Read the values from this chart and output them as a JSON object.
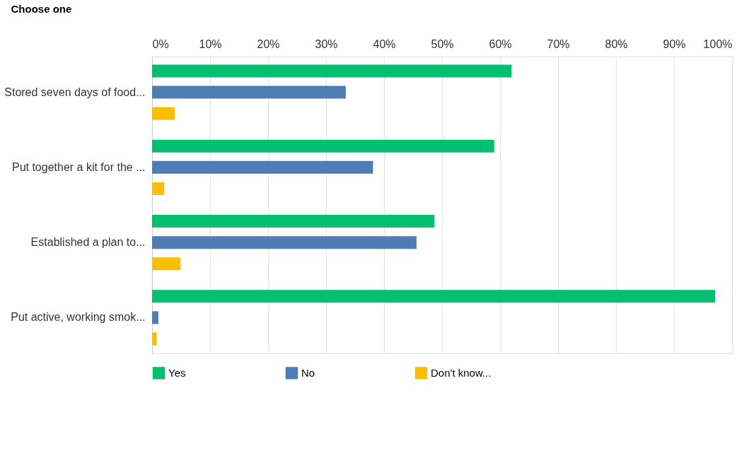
{
  "chart_data": {
    "type": "bar",
    "orientation": "horizontal",
    "ylabel": "Choose one",
    "categories": [
      "Stored seven days of food...",
      "Put together a kit for the ...",
      "Established a plan to...",
      "Put active, working smok..."
    ],
    "series": [
      {
        "name": "Yes",
        "color": "#00bf6f",
        "values": [
          62,
          59,
          48.7,
          97.1
        ]
      },
      {
        "name": "No",
        "color": "#507cb6",
        "values": [
          33.4,
          38.1,
          45.6,
          1.1
        ]
      },
      {
        "name": "Don't know...",
        "color": "#f9be00",
        "values": [
          3.9,
          2.1,
          4.9,
          0.8
        ]
      }
    ],
    "xlim": [
      0,
      100
    ],
    "xticks": [
      {
        "value": 0,
        "label": "0%"
      },
      {
        "value": 10,
        "label": "10%"
      },
      {
        "value": 20,
        "label": "20%"
      },
      {
        "value": 30,
        "label": "30%"
      },
      {
        "value": 40,
        "label": "40%"
      },
      {
        "value": 50,
        "label": "50%"
      },
      {
        "value": 60,
        "label": "60%"
      },
      {
        "value": 70,
        "label": "70%"
      },
      {
        "value": 80,
        "label": "80%"
      },
      {
        "value": 90,
        "label": "90%"
      },
      {
        "value": 100,
        "label": "100%"
      }
    ],
    "grid": "x",
    "legend": "bottom"
  }
}
